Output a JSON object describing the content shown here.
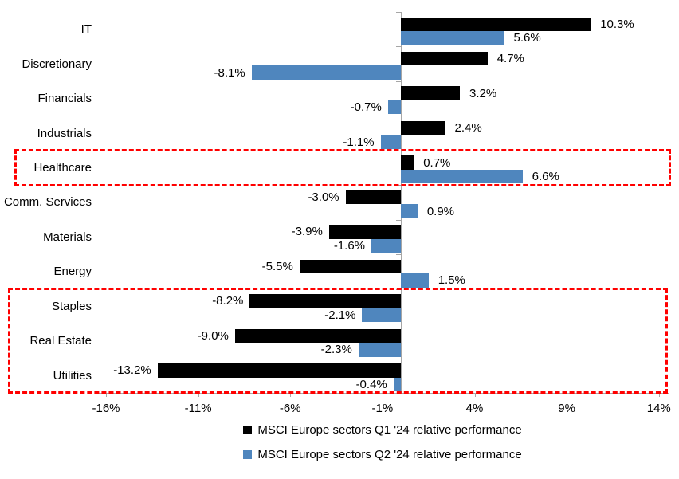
{
  "chart_data": {
    "type": "bar",
    "orientation": "horizontal",
    "title": "",
    "categories": [
      "IT",
      "Discretionary",
      "Financials",
      "Industrials",
      "Healthcare",
      "Comm. Services",
      "Materials",
      "Energy",
      "Staples",
      "Real Estate",
      "Utilities"
    ],
    "series": [
      {
        "name": "MSCI Europe sectors Q1 '24 relative performance",
        "color": "#000000",
        "values": [
          10.3,
          4.7,
          3.2,
          2.4,
          0.7,
          -3.0,
          -3.9,
          -5.5,
          -8.2,
          -9.0,
          -13.2
        ]
      },
      {
        "name": "MSCI Europe sectors Q2 '24 relative performance",
        "color": "#4f86be",
        "values": [
          5.6,
          -8.1,
          -0.7,
          -1.1,
          6.6,
          0.9,
          -1.6,
          1.5,
          -2.1,
          -2.3,
          -0.4
        ]
      }
    ],
    "value_label_format": "one-decimal-percent",
    "x_ticks": [
      "-16%",
      "-11%",
      "-6%",
      "-1%",
      "4%",
      "9%",
      "14%"
    ],
    "x_tick_values": [
      -16,
      -11,
      -6,
      -1,
      4,
      9,
      14
    ],
    "xlim": [
      -16.5,
      14.6
    ],
    "grid": false,
    "axis_color": "#a6a6a6",
    "legend_position": "bottom-center",
    "highlight_boxes": [
      {
        "categories": [
          "Healthcare"
        ],
        "color": "#ff0000"
      },
      {
        "categories": [
          "Staples",
          "Real Estate",
          "Utilities"
        ],
        "color": "#ff0000"
      }
    ]
  }
}
